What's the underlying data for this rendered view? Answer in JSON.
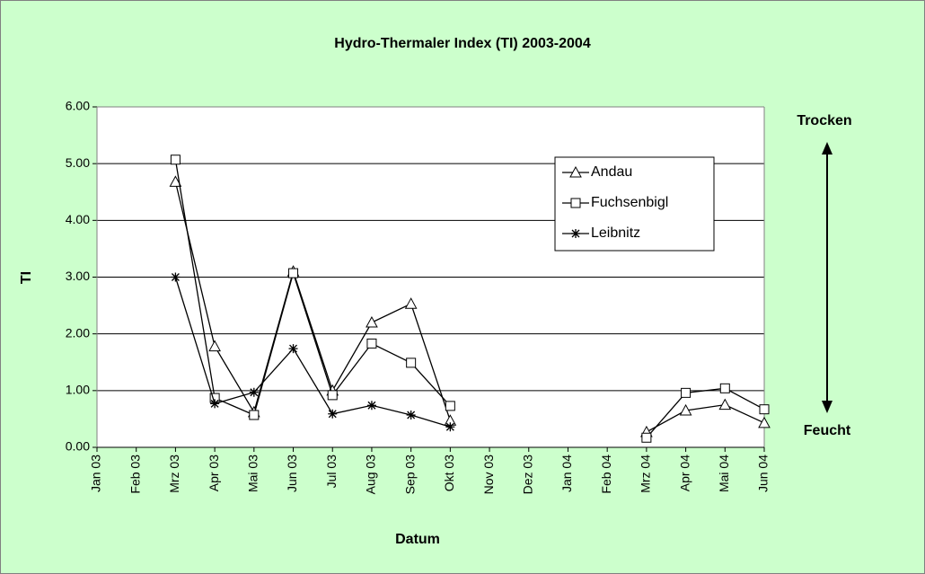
{
  "chart_data": {
    "type": "line",
    "title": "Hydro-Thermaler Index (TI) 2003-2004",
    "x_label": "Datum",
    "y_label": "TI",
    "annotations": [
      "Trocken",
      "Feucht"
    ],
    "categories": [
      "Jan 03",
      "Feb 03",
      "Mrz 03",
      "Apr 03",
      "Mai 03",
      "Jun 03",
      "Jul 03",
      "Aug 03",
      "Sep 03",
      "Okt 03",
      "Nov 03",
      "Dez 03",
      "Jan 04",
      "Feb 04",
      "Mrz 04",
      "Apr 04",
      "Mai 04",
      "Jun 04"
    ],
    "series": [
      {
        "name": "Andau",
        "color": "#000000",
        "marker": "triangle",
        "values": [
          null,
          null,
          4.68,
          1.78,
          0.62,
          3.1,
          1.0,
          2.2,
          2.53,
          0.47,
          null,
          null,
          null,
          null,
          0.27,
          0.65,
          0.75,
          0.43
        ]
      },
      {
        "name": "Fuchsenbigl",
        "color": "#000000",
        "marker": "square",
        "values": [
          null,
          null,
          5.07,
          0.87,
          0.57,
          3.07,
          0.92,
          1.83,
          1.49,
          0.73,
          null,
          null,
          null,
          null,
          0.17,
          0.96,
          1.04,
          0.67
        ]
      },
      {
        "name": "Leibnitz",
        "color": "#000000",
        "marker": "asterisk",
        "values": [
          null,
          null,
          3.0,
          0.77,
          0.97,
          1.74,
          0.59,
          0.74,
          0.57,
          0.36,
          null,
          null,
          null,
          null,
          null,
          null,
          null,
          null
        ]
      }
    ],
    "ylim": [
      0,
      6
    ],
    "yticks": [
      {
        "value": 0,
        "label": "0.00"
      },
      {
        "value": 1,
        "label": "1.00"
      },
      {
        "value": 2,
        "label": "2.00"
      },
      {
        "value": 3,
        "label": "3.00"
      },
      {
        "value": 4,
        "label": "4.00"
      },
      {
        "value": 5,
        "label": "5.00"
      },
      {
        "value": 6,
        "label": "6.00"
      }
    ],
    "grid": true,
    "legend": "upper right",
    "background": "#ccffcc",
    "plot_background": "#ffffff"
  }
}
